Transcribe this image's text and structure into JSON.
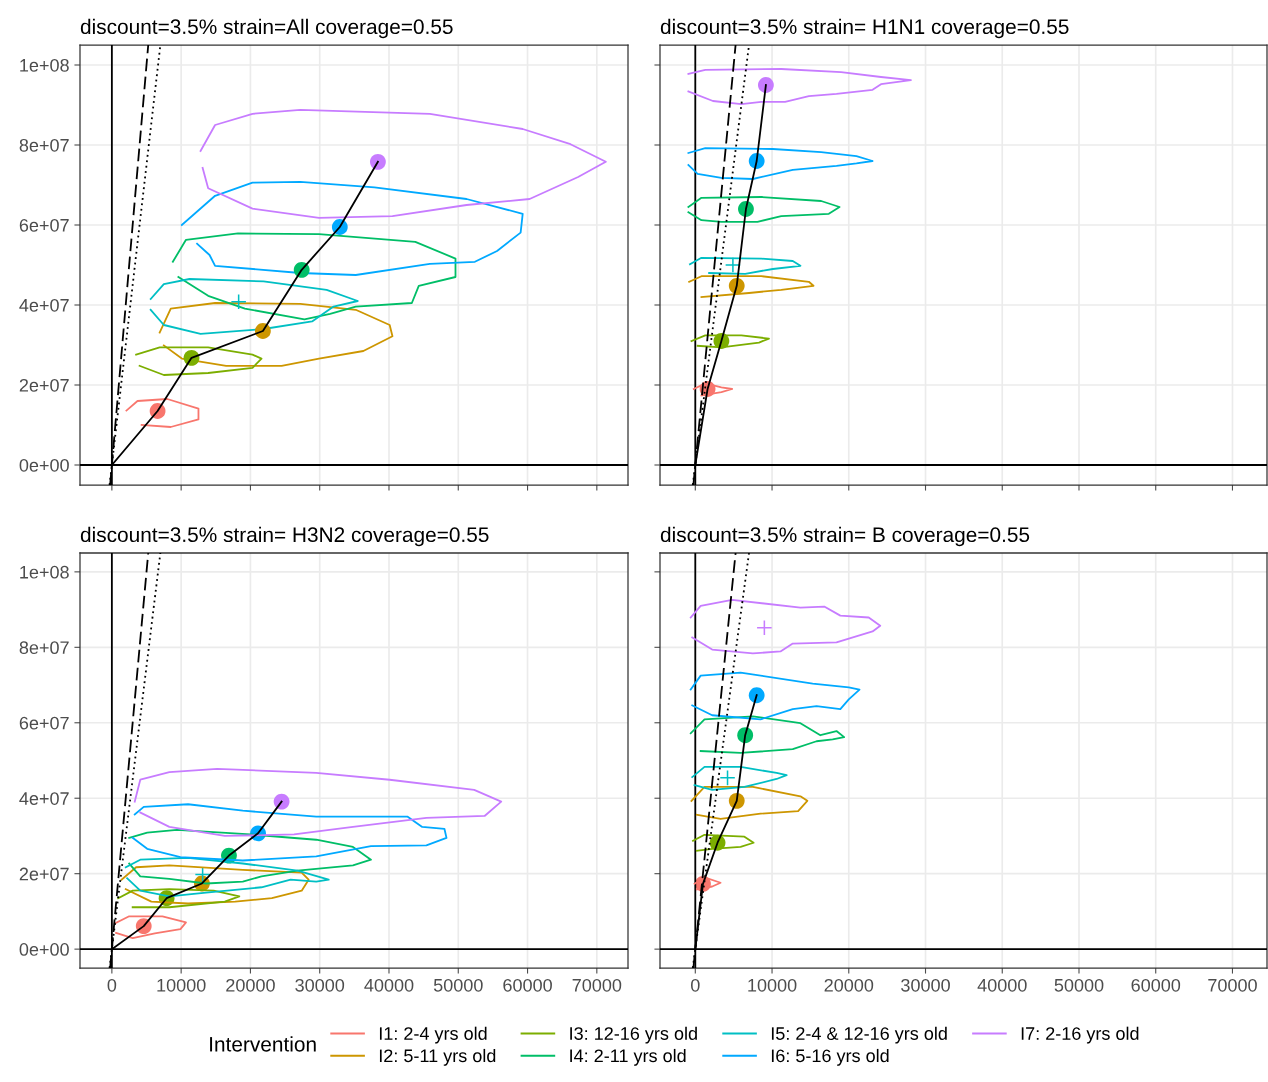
{
  "chart_data": [
    {
      "type": "line",
      "title": "discount=3.5% strain=All coverage=0.55",
      "legend_title": "Intervention",
      "legend": "bottom",
      "grid": true,
      "tick_labels": "y",
      "xlim": [
        -4600,
        74500
      ],
      "ylim": [
        -5000000,
        105000000
      ],
      "xticks": [
        0,
        10000,
        20000,
        30000,
        40000,
        50000,
        60000,
        70000
      ],
      "yticks": [
        {
          "value": 0,
          "label": "0e+00"
        },
        {
          "value": 20000000,
          "label": "2e+07"
        },
        {
          "value": 40000000,
          "label": "4e+07"
        },
        {
          "value": 60000000,
          "label": "6e+07"
        },
        {
          "value": 80000000,
          "label": "8e+07"
        },
        {
          "value": 100000000,
          "label": "1e+08"
        }
      ],
      "series": [
        {
          "type": "line",
          "color": "#000000",
          "x": [
            0,
            0
          ],
          "values": [
            -5000000,
            105000000
          ]
        },
        {
          "type": "line",
          "color": "#000000",
          "x": [
            -4600,
            74500
          ],
          "values": [
            0,
            0
          ]
        },
        {
          "name": "I1: 2-4 yrs old",
          "color": "#f8766d",
          "x": [
            2100,
            3700,
            8000,
            12500,
            12500,
            8500,
            4300
          ],
          "values": [
            13600000.0,
            16000000.0,
            16500000.0,
            14100000.0,
            11400000.0,
            9500000.0,
            10000000.0
          ]
        },
        {
          "name": "I2: 5-11 yrs old",
          "color": "#cd9600",
          "x": [
            6900,
            8500,
            14900,
            27200,
            35200,
            40100,
            40500,
            36300,
            29900,
            24500,
            16500,
            10100,
            7500
          ],
          "values": [
            33100000.0,
            39100000.0,
            40500000.0,
            40300000.0,
            38800000.0,
            35000000.0,
            32200000.0,
            28500000.0,
            26600000.0,
            24800000.0,
            24800000.0,
            26600000.0,
            29900000.0
          ]
        },
        {
          "name": "I3: 12-16 yrs old",
          "color": "#7cae00",
          "x": [
            3500,
            6900,
            13900,
            20300,
            21600,
            20300,
            13900,
            7500,
            4000
          ],
          "values": [
            27600000.0,
            29400000.0,
            29400000.0,
            27600000.0,
            26600000.0,
            24300000.0,
            23000000.0,
            22500000.0,
            24800000.0
          ]
        },
        {
          "name": "I4: 2-11 yrs old",
          "color": "#00be67",
          "x": [
            8800,
            10700,
            18200,
            29900,
            43800,
            49600,
            49600,
            44300,
            43300,
            35200,
            31500,
            27800,
            19200,
            13900,
            9600
          ],
          "values": [
            50800000.0,
            56300000.0,
            57900000.0,
            57700000.0,
            55800000.0,
            51600000.0,
            47000000.0,
            44800000.0,
            40500000.0,
            39600000.0,
            37800000.0,
            36400000.0,
            39100000.0,
            42300000.0,
            47000000.0
          ]
        },
        {
          "name": "I5: 2-4 & 12-16 yrs old",
          "color": "#00bfc4",
          "x": [
            5600,
            7500,
            11200,
            21900,
            31000,
            35500,
            32000,
            28900,
            21900,
            12800,
            7500,
            5600
          ],
          "values": [
            41500000.0,
            45200000.0,
            46500000.0,
            45900000.0,
            43800000.0,
            41000000.0,
            39600000.0,
            35900000.0,
            34000000.0,
            32800000.0,
            35000000.0,
            38800000.0
          ]
        },
        {
          "name": "I6: 5-16 yrs old",
          "color": "#00a9ff",
          "x": [
            10100,
            14900,
            20300,
            27200,
            37900,
            51200,
            59300,
            59000,
            55600,
            52400,
            45900,
            35200,
            27200,
            14900,
            14100,
            12300
          ],
          "values": [
            60000000.0,
            67300000.0,
            70600000.0,
            70800000.0,
            69400000.0,
            66500000.0,
            62800000.0,
            58100000.0,
            53500000.0,
            50800000.0,
            50300000.0,
            47500000.0,
            48000000.0,
            49800000.0,
            52500000.0,
            55300000.0
          ]
        },
        {
          "name": "I7: 2-16 yrs old",
          "color": "#c77cff",
          "x": [
            12800,
            14900,
            20300,
            27200,
            45900,
            59300,
            66200,
            71300,
            67300,
            60300,
            51200,
            40500,
            29900,
            20300,
            13900,
            13100
          ],
          "values": [
            78500000.0,
            85000000.0,
            87800000.0,
            88800000.0,
            87800000.0,
            84000000.0,
            80200000.0,
            75800000.0,
            72000000.0,
            66500000.0,
            65000000.0,
            62200000.0,
            61800000.0,
            64100000.0,
            69200000.0,
            74300000.0
          ]
        },
        {
          "type": "line",
          "color": "#000000",
          "line_style": "dashed",
          "x": [
            -250,
            5250
          ],
          "values": [
            -5000000,
            105000000
          ]
        },
        {
          "type": "line",
          "color": "#000000",
          "line_style": "dotted",
          "x": [
            -333,
            7000
          ],
          "values": [
            -5000000,
            105000000
          ]
        },
        {
          "type": "scatter",
          "color": "#f8766d",
          "marker": "circle",
          "x": [
            6600
          ],
          "values": [
            13500000.0
          ]
        },
        {
          "type": "scatter",
          "color": "#cd9600",
          "marker": "circle",
          "x": [
            21800
          ],
          "values": [
            33500000.0
          ]
        },
        {
          "type": "scatter",
          "color": "#7cae00",
          "marker": "circle",
          "x": [
            11500
          ],
          "values": [
            26800000.0
          ]
        },
        {
          "type": "scatter",
          "color": "#00be67",
          "marker": "circle",
          "x": [
            27400
          ],
          "values": [
            48800000.0
          ]
        },
        {
          "type": "scatter",
          "color": "#00bfc4",
          "marker": "cross",
          "x": [
            18300
          ],
          "values": [
            40800000.0
          ]
        },
        {
          "type": "scatter",
          "color": "#00a9ff",
          "marker": "circle",
          "x": [
            32900
          ],
          "values": [
            59500000.0
          ]
        },
        {
          "type": "scatter",
          "color": "#c77cff",
          "marker": "circle",
          "x": [
            38400
          ],
          "values": [
            75800000.0
          ]
        },
        {
          "type": "line",
          "color": "#000000",
          "x": [
            0,
            6600,
            11500,
            21800,
            27400,
            32900,
            38400
          ],
          "values": [
            0,
            13500000.0,
            26800000.0,
            33500000.0,
            48800000.0,
            59500000.0,
            75800000.0
          ]
        }
      ]
    },
    {
      "type": "line",
      "title": "discount=3.5% strain= H1N1 coverage=0.55",
      "grid": true,
      "tick_labels": false,
      "xlim": [
        -4600,
        74500
      ],
      "ylim": [
        -5000000,
        105000000
      ],
      "xticks": [
        0,
        10000,
        20000,
        30000,
        40000,
        50000,
        60000,
        70000
      ],
      "yticks": [
        0,
        20000000,
        40000000,
        60000000,
        80000000,
        100000000
      ],
      "series": [
        {
          "type": "line",
          "color": "#000000",
          "x": [
            0,
            0
          ],
          "values": [
            -5000000,
            105000000
          ]
        },
        {
          "type": "line",
          "color": "#000000",
          "x": [
            -4600,
            74500
          ],
          "values": [
            0,
            0
          ]
        },
        {
          "color": "#f8766d",
          "x": [
            -200,
            1300,
            3400,
            4800,
            3400,
            800
          ],
          "values": [
            19000000.0,
            20400000.0,
            19400000.0,
            19000000.0,
            18200000.0,
            17400000.0
          ]
        },
        {
          "color": "#cd9600",
          "x": [
            -800,
            800,
            8600,
            14800,
            15400,
            11200,
            7000,
            800
          ],
          "values": [
            45800000.0,
            47200000.0,
            47200000.0,
            45800000.0,
            44800000.0,
            43800000.0,
            43000000.0,
            42000000.0
          ]
        },
        {
          "color": "#7cae00",
          "x": [
            -500,
            1300,
            6000,
            9600,
            8300,
            3400,
            300
          ],
          "values": [
            31000000.0,
            32400000.0,
            32400000.0,
            31600000.0,
            30600000.0,
            29400000.0,
            29800000.0
          ]
        },
        {
          "color": "#00be67",
          "x": [
            -900,
            800,
            8600,
            16400,
            18800,
            17400,
            11200,
            8100,
            3400,
            800,
            -900
          ],
          "values": [
            64500000.0,
            66800000.0,
            67000000.0,
            66000000.0,
            64500000.0,
            62800000.0,
            62200000.0,
            60800000.0,
            60800000.0,
            61200000.0,
            63200000.0
          ]
        },
        {
          "color": "#00bfc4",
          "x": [
            -700,
            800,
            8600,
            12700,
            13700,
            10100,
            6500,
            1800
          ],
          "values": [
            50200000.0,
            51800000.0,
            51600000.0,
            51000000.0,
            49800000.0,
            49000000.0,
            47800000.0,
            48000000.0
          ]
        },
        {
          "color": "#00a9ff",
          "x": [
            -900,
            1300,
            10100,
            16400,
            21000,
            23100,
            21000,
            18400,
            12700,
            7500,
            3400,
            300,
            -900
          ],
          "values": [
            78000000.0,
            79200000.0,
            79000000.0,
            78200000.0,
            77200000.0,
            76000000.0,
            75400000.0,
            74800000.0,
            73800000.0,
            71500000.0,
            71800000.0,
            72800000.0,
            75000000.0
          ]
        },
        {
          "color": "#c77cff",
          "x": [
            -900,
            1300,
            11200,
            19000,
            24200,
            28100,
            24200,
            23100,
            18400,
            14800,
            11700,
            8600,
            6000,
            2300,
            -900
          ],
          "values": [
            97800000.0,
            98800000.0,
            99000000.0,
            98200000.0,
            97000000.0,
            96200000.0,
            95200000.0,
            93800000.0,
            92800000.0,
            92200000.0,
            90800000.0,
            90800000.0,
            90200000.0,
            91000000.0,
            93400000.0
          ]
        },
        {
          "type": "line",
          "color": "#000000",
          "line_style": "dashed",
          "x": [
            -250,
            5250
          ],
          "values": [
            -5000000,
            105000000
          ]
        },
        {
          "type": "line",
          "color": "#000000",
          "line_style": "dotted",
          "x": [
            -333,
            7000
          ],
          "values": [
            -5000000,
            105000000
          ]
        },
        {
          "type": "scatter",
          "color": "#f8766d",
          "marker": "circle",
          "x": [
            1600
          ],
          "values": [
            19000000.0
          ]
        },
        {
          "type": "scatter",
          "color": "#cd9600",
          "marker": "circle",
          "x": [
            5400
          ],
          "values": [
            44800000.0
          ]
        },
        {
          "type": "scatter",
          "color": "#7cae00",
          "marker": "circle",
          "x": [
            3400
          ],
          "values": [
            31000000.0
          ]
        },
        {
          "type": "scatter",
          "color": "#00be67",
          "marker": "circle",
          "x": [
            6600
          ],
          "values": [
            64000000.0
          ]
        },
        {
          "type": "scatter",
          "color": "#00bfc4",
          "marker": "cross",
          "x": [
            4900
          ],
          "values": [
            50000000.0
          ]
        },
        {
          "type": "scatter",
          "color": "#00a9ff",
          "marker": "circle",
          "x": [
            8000
          ],
          "values": [
            76000000.0
          ]
        },
        {
          "type": "scatter",
          "color": "#c77cff",
          "marker": "circle",
          "x": [
            9200
          ],
          "values": [
            95000000.0
          ]
        },
        {
          "type": "line",
          "color": "#000000",
          "x": [
            0,
            1600,
            3400,
            5400,
            6600,
            8000,
            9200
          ],
          "values": [
            0,
            19000000.0,
            31000000.0,
            44800000.0,
            64000000.0,
            76000000.0,
            95000000.0
          ]
        }
      ]
    },
    {
      "type": "line",
      "title": "discount=3.5% strain= H3N2 coverage=0.55",
      "grid": true,
      "xlim": [
        -4600,
        74500
      ],
      "ylim": [
        -5000000,
        105000000
      ],
      "xticks": [
        0,
        10000,
        20000,
        30000,
        40000,
        50000,
        60000,
        70000
      ],
      "yticks": [
        {
          "value": 0,
          "label": "0e+00"
        },
        {
          "value": 20000000,
          "label": "2e+07"
        },
        {
          "value": 40000000,
          "label": "4e+07"
        },
        {
          "value": 60000000,
          "label": "6e+07"
        },
        {
          "value": 80000000,
          "label": "8e+07"
        },
        {
          "value": 100000000,
          "label": "1e+08"
        }
      ],
      "series": [
        {
          "type": "line",
          "color": "#000000",
          "x": [
            0,
            0
          ],
          "values": [
            -5000000,
            105000000
          ]
        },
        {
          "type": "line",
          "color": "#000000",
          "x": [
            -4600,
            74500
          ],
          "values": [
            0,
            0
          ]
        },
        {
          "color": "#f8766d",
          "x": [
            400,
            2500,
            7300,
            10700,
            9900,
            6200,
            3000,
            600
          ],
          "values": [
            6800000.0,
            8700000.0,
            8700000.0,
            7100000.0,
            5300000.0,
            4200000.0,
            2900000.0,
            4300000.0
          ]
        },
        {
          "color": "#cd9600",
          "x": [
            1400,
            3500,
            8300,
            18900,
            27400,
            28400,
            27400,
            23100,
            17800,
            11000,
            5700,
            2000
          ],
          "values": [
            18400000.0,
            21700000.0,
            22200000.0,
            21000000.0,
            20300000.0,
            18400000.0,
            15500000.0,
            13500000.0,
            12600000.0,
            12100000.0,
            12600000.0,
            15900000.0
          ]
        },
        {
          "color": "#7cae00",
          "x": [
            900,
            3000,
            8300,
            14700,
            18400,
            16300,
            8300,
            3000
          ],
          "values": [
            13500000.0,
            15500000.0,
            15900000.0,
            15500000.0,
            14000000.0,
            12600000.0,
            11100000.0,
            11100000.0
          ]
        },
        {
          "color": "#00be67",
          "x": [
            2500,
            5100,
            9400,
            20000,
            29500,
            34800,
            37400,
            34800,
            26800,
            21600,
            18900,
            13600,
            8300,
            4100,
            2500
          ],
          "values": [
            29500000.0,
            30900000.0,
            31600000.0,
            30400000.0,
            29000000.0,
            27100000.0,
            23700000.0,
            22200000.0,
            20800000.0,
            19300000.0,
            17900000.0,
            17400000.0,
            18600000.0,
            19300000.0,
            22700000.0
          ]
        },
        {
          "color": "#00bfc4",
          "x": [
            2000,
            4100,
            11000,
            18900,
            26800,
            31300,
            29500,
            25800,
            21600,
            13600,
            8300,
            4100,
            2200
          ],
          "values": [
            21700000.0,
            23700000.0,
            24200000.0,
            22700000.0,
            20800000.0,
            18400000.0,
            17900000.0,
            18400000.0,
            16400000.0,
            15000000.0,
            14000000.0,
            15500000.0,
            18800000.0
          ]
        },
        {
          "color": "#00a9ff",
          "x": [
            3300,
            4600,
            11000,
            18900,
            29500,
            42700,
            44800,
            48000,
            48300,
            45400,
            37400,
            29500,
            18900,
            9900,
            5100,
            3000
          ],
          "values": [
            35700000.0,
            37700000.0,
            38400000.0,
            36700000.0,
            35100000.0,
            35100000.0,
            32400000.0,
            31900000.0,
            29500000.0,
            27500000.0,
            27300000.0,
            24600000.0,
            23500000.0,
            24400000.0,
            26600000.0,
            29500000.0
          ]
        },
        {
          "color": "#c77cff",
          "x": [
            3300,
            4100,
            8300,
            15200,
            29500,
            40100,
            52300,
            56200,
            53800,
            45400,
            34800,
            26300,
            16300,
            8300,
            4100
          ],
          "values": [
            39100000.0,
            44900000.0,
            46900000.0,
            47800000.0,
            46700000.0,
            44900000.0,
            42200000.0,
            39100000.0,
            35300000.0,
            34800000.0,
            32400000.0,
            30400000.0,
            30000000.0,
            32400000.0,
            36200000.0
          ]
        },
        {
          "type": "line",
          "color": "#000000",
          "line_style": "dashed",
          "x": [
            -250,
            5250
          ],
          "values": [
            -5000000,
            105000000
          ]
        },
        {
          "type": "line",
          "color": "#000000",
          "line_style": "dotted",
          "x": [
            -333,
            7000
          ],
          "values": [
            -5000000,
            105000000
          ]
        },
        {
          "type": "scatter",
          "color": "#f8766d",
          "marker": "circle",
          "x": [
            4600
          ],
          "values": [
            6100000.0
          ]
        },
        {
          "type": "scatter",
          "color": "#cd9600",
          "marker": "circle",
          "x": [
            13000
          ],
          "values": [
            17400000.0
          ]
        },
        {
          "type": "scatter",
          "color": "#7cae00",
          "marker": "circle",
          "x": [
            7900
          ],
          "values": [
            13500000.0
          ]
        },
        {
          "type": "scatter",
          "color": "#00be67",
          "marker": "circle",
          "x": [
            16900
          ],
          "values": [
            24800000.0
          ]
        },
        {
          "type": "scatter",
          "color": "#00bfc4",
          "marker": "cross",
          "x": [
            13100
          ],
          "values": [
            19800000.0
          ]
        },
        {
          "type": "scatter",
          "color": "#00a9ff",
          "marker": "circle",
          "x": [
            21100
          ],
          "values": [
            30700000.0
          ]
        },
        {
          "type": "scatter",
          "color": "#c77cff",
          "marker": "circle",
          "x": [
            24500
          ],
          "values": [
            39100000.0
          ]
        },
        {
          "type": "line",
          "color": "#000000",
          "x": [
            0,
            4600,
            7900,
            13000,
            16900,
            21100,
            24500
          ],
          "values": [
            0,
            6100000.0,
            13500000.0,
            17400000.0,
            24800000.0,
            30700000.0,
            39100000.0
          ]
        }
      ]
    },
    {
      "type": "line",
      "title": "discount=3.5% strain= B coverage=0.55",
      "grid": true,
      "tick_labels": "x",
      "xlim": [
        -4600,
        74500
      ],
      "ylim": [
        -5000000,
        105000000
      ],
      "xticks": [
        0,
        10000,
        20000,
        30000,
        40000,
        50000,
        60000,
        70000
      ],
      "yticks": [
        0,
        20000000,
        40000000,
        60000000,
        80000000,
        100000000
      ],
      "series": [
        {
          "type": "line",
          "color": "#000000",
          "x": [
            0,
            0
          ],
          "values": [
            -5000000,
            105000000
          ]
        },
        {
          "type": "line",
          "color": "#000000",
          "x": [
            -4600,
            74500
          ],
          "values": [
            0,
            0
          ]
        },
        {
          "color": "#f8766d",
          "x": [
            -100,
            1200,
            3300,
            2200,
            200
          ],
          "values": [
            17300000.0,
            19000000.0,
            17600000.0,
            16600000.0,
            15800000.0
          ]
        },
        {
          "color": "#cd9600",
          "x": [
            -500,
            1200,
            7500,
            13700,
            14600,
            13400,
            8500,
            3300,
            200
          ],
          "values": [
            39300000.0,
            43000000.0,
            43000000.0,
            40500000.0,
            39300000.0,
            36600000.0,
            35900000.0,
            34500000.0,
            35600000.0
          ]
        },
        {
          "color": "#7cae00",
          "x": [
            -300,
            1200,
            6400,
            7600,
            5900,
            2200,
            200
          ],
          "values": [
            28700000.0,
            30300000.0,
            29800000.0,
            28200000.0,
            27100000.0,
            26600000.0,
            26100000.0
          ]
        },
        {
          "color": "#00be67",
          "x": [
            -600,
            1200,
            7500,
            13700,
            16300,
            18400,
            19400,
            17900,
            15800,
            12700,
            5900,
            700
          ],
          "values": [
            57200000.0,
            60900000.0,
            61700000.0,
            59900000.0,
            56700000.0,
            57800000.0,
            56200000.0,
            55600000.0,
            55100000.0,
            53000000.0,
            52000000.0,
            52500000.0
          ]
        },
        {
          "color": "#00bfc4",
          "x": [
            -400,
            1200,
            5900,
            10600,
            11900,
            10600,
            6400,
            2200,
            -100
          ],
          "values": [
            45600000.0,
            48300000.0,
            48300000.0,
            46700000.0,
            46100000.0,
            45100000.0,
            43000000.0,
            42200000.0,
            43500000.0
          ]
        },
        {
          "color": "#00a9ff",
          "x": [
            -600,
            700,
            5900,
            15300,
            20000,
            21400,
            20000,
            18900,
            15800,
            12700,
            8500,
            2200,
            -400
          ],
          "values": [
            68800000.0,
            72500000.0,
            73300000.0,
            70400000.0,
            69400000.0,
            68800000.0,
            66200000.0,
            63600000.0,
            64400000.0,
            63600000.0,
            60900000.0,
            62000000.0,
            64600000.0
          ]
        },
        {
          "color": "#c77cff",
          "x": [
            -600,
            700,
            4800,
            13700,
            16800,
            18900,
            22600,
            24100,
            23100,
            18400,
            12700,
            11100,
            7500,
            2200,
            -400
          ],
          "values": [
            87900000.0,
            91000000.0,
            92600000.0,
            90500000.0,
            90800000.0,
            88400000.0,
            87900000.0,
            85700000.0,
            84200000.0,
            81300000.0,
            81000000.0,
            78900000.0,
            78400000.0,
            79400000.0,
            82600000.0
          ]
        },
        {
          "type": "line",
          "color": "#000000",
          "line_style": "dashed",
          "x": [
            -250,
            5250
          ],
          "values": [
            -5000000,
            105000000
          ]
        },
        {
          "type": "line",
          "color": "#000000",
          "line_style": "dotted",
          "x": [
            -333,
            7000
          ],
          "values": [
            -5000000,
            105000000
          ]
        },
        {
          "type": "scatter",
          "color": "#f8766d",
          "marker": "circle",
          "x": [
            1000
          ],
          "values": [
            17300000.0
          ]
        },
        {
          "type": "scatter",
          "color": "#cd9600",
          "marker": "circle",
          "x": [
            5400
          ],
          "values": [
            39300000.0
          ]
        },
        {
          "type": "scatter",
          "color": "#7cae00",
          "marker": "circle",
          "x": [
            2900
          ],
          "values": [
            28200000.0
          ]
        },
        {
          "type": "scatter",
          "color": "#00be67",
          "marker": "circle",
          "x": [
            6500
          ],
          "values": [
            56700000.0
          ]
        },
        {
          "type": "scatter",
          "color": "#00bfc4",
          "marker": "cross",
          "x": [
            4200
          ],
          "values": [
            45400000.0
          ]
        },
        {
          "type": "scatter",
          "color": "#00a9ff",
          "marker": "circle",
          "x": [
            8000
          ],
          "values": [
            67300000.0
          ]
        },
        {
          "type": "scatter",
          "color": "#c77cff",
          "marker": "cross",
          "x": [
            9000
          ],
          "values": [
            85200000.0
          ]
        },
        {
          "type": "line",
          "color": "#000000",
          "x": [
            0,
            1000,
            2900,
            5400,
            6500,
            8000
          ],
          "values": [
            0,
            17300000.0,
            28200000.0,
            39300000.0,
            56700000.0,
            67300000.0
          ]
        }
      ]
    }
  ]
}
